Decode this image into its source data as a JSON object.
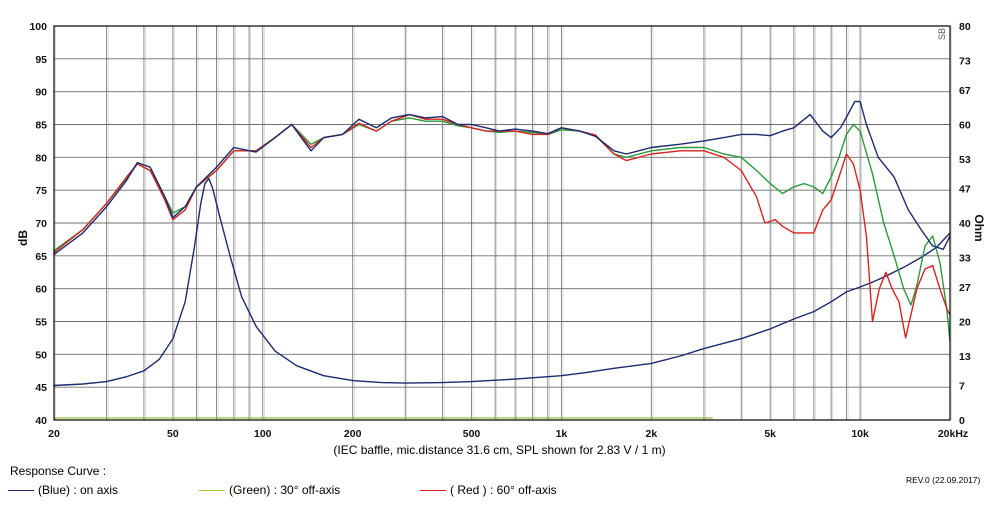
{
  "caption": "(IEC baffle, mic.distance 31.6 cm, SPL shown for 2.83 V / 1 m)",
  "legend": {
    "title": "Response Curve :",
    "items": [
      {
        "text": "(Blue)  : on axis",
        "color": "#1c2a6e"
      },
      {
        "text": "(Green) : 30° off-axis",
        "color": "#9acd32"
      },
      {
        "text": "( Red ) : 60° off-axis",
        "color": "#d8241f"
      }
    ]
  },
  "revision": "REV.0 (22.09.2017)",
  "brand": "SB",
  "chart_data": {
    "type": "line",
    "x_scale": "log",
    "xlim": [
      20,
      20000
    ],
    "ylim": [
      40,
      100
    ],
    "y2lim": [
      0,
      80
    ],
    "ylabel": "dB",
    "y2label": "Ohm",
    "grid": true,
    "x_ticks": [
      20,
      50,
      100,
      200,
      500,
      1000,
      2000,
      5000,
      10000,
      20000
    ],
    "x_tick_labels": [
      "20",
      "50",
      "100",
      "200",
      "500",
      "1k",
      "2k",
      "5k",
      "10k",
      "20kHz"
    ],
    "y_ticks": [
      40,
      45,
      50,
      55,
      60,
      65,
      70,
      75,
      80,
      85,
      90,
      95,
      100
    ],
    "y2_ticks": [
      0,
      7,
      13,
      20,
      27,
      33,
      40,
      47,
      53,
      60,
      67,
      73,
      80
    ],
    "series": [
      {
        "name": "on axis",
        "color": "#1c2a6e",
        "axis": "left",
        "points": [
          [
            20,
            65.2
          ],
          [
            25,
            68.5
          ],
          [
            30,
            72.5
          ],
          [
            35,
            76.5
          ],
          [
            38,
            79.2
          ],
          [
            42,
            78.5
          ],
          [
            47,
            74
          ],
          [
            50,
            70.8
          ],
          [
            55,
            72.5
          ],
          [
            60,
            75.5
          ],
          [
            70,
            78.5
          ],
          [
            80,
            81.5
          ],
          [
            95,
            80.8
          ],
          [
            110,
            83
          ],
          [
            125,
            85
          ],
          [
            145,
            81
          ],
          [
            160,
            83
          ],
          [
            185,
            83.5
          ],
          [
            210,
            85.8
          ],
          [
            240,
            84.5
          ],
          [
            270,
            86
          ],
          [
            310,
            86.5
          ],
          [
            350,
            86
          ],
          [
            400,
            86.2
          ],
          [
            450,
            85
          ],
          [
            500,
            85
          ],
          [
            560,
            84.5
          ],
          [
            620,
            84
          ],
          [
            700,
            84.3
          ],
          [
            800,
            84
          ],
          [
            900,
            83.6
          ],
          [
            1000,
            84.5
          ],
          [
            1150,
            84
          ],
          [
            1300,
            83.2
          ],
          [
            1500,
            81
          ],
          [
            1650,
            80.5
          ],
          [
            2000,
            81.5
          ],
          [
            2500,
            82
          ],
          [
            3000,
            82.5
          ],
          [
            3500,
            83
          ],
          [
            4000,
            83.5
          ],
          [
            4500,
            83.5
          ],
          [
            5000,
            83.3
          ],
          [
            5500,
            84
          ],
          [
            6000,
            84.5
          ],
          [
            6800,
            86.5
          ],
          [
            7500,
            84
          ],
          [
            8000,
            83
          ],
          [
            8600,
            84.5
          ],
          [
            9100,
            86.5
          ],
          [
            9600,
            88.5
          ],
          [
            10000,
            88.5
          ],
          [
            10500,
            85
          ],
          [
            11500,
            80
          ],
          [
            13000,
            77
          ],
          [
            14500,
            72
          ],
          [
            16000,
            69
          ],
          [
            17500,
            66.5
          ],
          [
            19000,
            66
          ],
          [
            20000,
            68
          ]
        ]
      },
      {
        "name": "30° off-axis",
        "color": "#2c9a3b",
        "axis": "left",
        "points": [
          [
            20,
            65.8
          ],
          [
            25,
            69
          ],
          [
            30,
            73
          ],
          [
            35,
            76.8
          ],
          [
            38,
            79
          ],
          [
            42,
            78
          ],
          [
            47,
            74
          ],
          [
            50,
            71.5
          ],
          [
            55,
            72.5
          ],
          [
            60,
            75.5
          ],
          [
            70,
            78
          ],
          [
            80,
            81
          ],
          [
            95,
            81
          ],
          [
            110,
            83
          ],
          [
            125,
            85
          ],
          [
            145,
            82
          ],
          [
            160,
            83
          ],
          [
            185,
            83.5
          ],
          [
            210,
            85
          ],
          [
            240,
            84
          ],
          [
            270,
            85.5
          ],
          [
            310,
            86
          ],
          [
            350,
            85.5
          ],
          [
            400,
            85.5
          ],
          [
            450,
            84.8
          ],
          [
            500,
            84.5
          ],
          [
            560,
            84
          ],
          [
            620,
            83.8
          ],
          [
            700,
            84
          ],
          [
            800,
            83.8
          ],
          [
            900,
            83.5
          ],
          [
            1000,
            84.2
          ],
          [
            1150,
            84
          ],
          [
            1300,
            83.3
          ],
          [
            1500,
            80.5
          ],
          [
            1650,
            80
          ],
          [
            2000,
            81
          ],
          [
            2500,
            81.5
          ],
          [
            3000,
            81.5
          ],
          [
            3500,
            80.5
          ],
          [
            4000,
            80
          ],
          [
            4500,
            78
          ],
          [
            5000,
            76
          ],
          [
            5500,
            74.5
          ],
          [
            6000,
            75.5
          ],
          [
            6500,
            76
          ],
          [
            7000,
            75.5
          ],
          [
            7500,
            74.5
          ],
          [
            8000,
            77
          ],
          [
            8500,
            80
          ],
          [
            9000,
            83.5
          ],
          [
            9500,
            85
          ],
          [
            10000,
            84
          ],
          [
            11000,
            77.5
          ],
          [
            12000,
            70
          ],
          [
            13000,
            65
          ],
          [
            14000,
            60
          ],
          [
            14800,
            57.5
          ],
          [
            15500,
            60.5
          ],
          [
            16500,
            66.5
          ],
          [
            17500,
            68
          ],
          [
            18500,
            64
          ],
          [
            19500,
            57
          ],
          [
            20000,
            52
          ]
        ]
      },
      {
        "name": "60° off-axis",
        "color": "#d8241f",
        "axis": "left",
        "points": [
          [
            20,
            65.5
          ],
          [
            25,
            69
          ],
          [
            30,
            73
          ],
          [
            35,
            77
          ],
          [
            38,
            79
          ],
          [
            42,
            78
          ],
          [
            47,
            73.5
          ],
          [
            50,
            70.5
          ],
          [
            55,
            72
          ],
          [
            60,
            75.5
          ],
          [
            70,
            78
          ],
          [
            80,
            81
          ],
          [
            95,
            81
          ],
          [
            110,
            83
          ],
          [
            125,
            85
          ],
          [
            145,
            81.5
          ],
          [
            160,
            83
          ],
          [
            185,
            83.5
          ],
          [
            210,
            85.2
          ],
          [
            240,
            84
          ],
          [
            270,
            85.5
          ],
          [
            310,
            86.5
          ],
          [
            350,
            85.8
          ],
          [
            400,
            85.8
          ],
          [
            450,
            85
          ],
          [
            500,
            84.5
          ],
          [
            560,
            84
          ],
          [
            620,
            84
          ],
          [
            700,
            84
          ],
          [
            800,
            83.5
          ],
          [
            900,
            83.5
          ],
          [
            1000,
            84.5
          ],
          [
            1150,
            84
          ],
          [
            1300,
            83.4
          ],
          [
            1500,
            80.5
          ],
          [
            1650,
            79.5
          ],
          [
            2000,
            80.5
          ],
          [
            2500,
            81
          ],
          [
            3000,
            81
          ],
          [
            3500,
            80
          ],
          [
            4000,
            78
          ],
          [
            4500,
            74
          ],
          [
            4800,
            70
          ],
          [
            5200,
            70.5
          ],
          [
            5500,
            69.5
          ],
          [
            6000,
            68.5
          ],
          [
            6500,
            68.5
          ],
          [
            7000,
            68.5
          ],
          [
            7500,
            72
          ],
          [
            8000,
            73.5
          ],
          [
            8500,
            77
          ],
          [
            9000,
            80.5
          ],
          [
            9500,
            79
          ],
          [
            10000,
            75
          ],
          [
            10500,
            68
          ],
          [
            11000,
            55
          ],
          [
            11600,
            60
          ],
          [
            12200,
            62.5
          ],
          [
            12800,
            60
          ],
          [
            13500,
            58
          ],
          [
            14200,
            52.5
          ],
          [
            14800,
            56
          ],
          [
            15500,
            60
          ],
          [
            16500,
            63
          ],
          [
            17500,
            63.5
          ],
          [
            18500,
            60
          ],
          [
            19500,
            57
          ],
          [
            20000,
            56
          ]
        ]
      },
      {
        "name": "impedance",
        "color": "#1c2a6e",
        "axis": "right",
        "points": [
          [
            20,
            7
          ],
          [
            25,
            7.3
          ],
          [
            30,
            7.8
          ],
          [
            35,
            8.8
          ],
          [
            40,
            10
          ],
          [
            45,
            12.3
          ],
          [
            50,
            16.5
          ],
          [
            55,
            24
          ],
          [
            59,
            35
          ],
          [
            62,
            44
          ],
          [
            64,
            48
          ],
          [
            66,
            49
          ],
          [
            68,
            47
          ],
          [
            72,
            41
          ],
          [
            78,
            33
          ],
          [
            85,
            25
          ],
          [
            95,
            19
          ],
          [
            110,
            14
          ],
          [
            130,
            11
          ],
          [
            160,
            9
          ],
          [
            200,
            8
          ],
          [
            250,
            7.6
          ],
          [
            300,
            7.5
          ],
          [
            400,
            7.6
          ],
          [
            500,
            7.8
          ],
          [
            700,
            8.3
          ],
          [
            1000,
            9
          ],
          [
            1200,
            9.6
          ],
          [
            1500,
            10.5
          ],
          [
            2000,
            11.5
          ],
          [
            2500,
            13
          ],
          [
            3000,
            14.5
          ],
          [
            4000,
            16.5
          ],
          [
            5000,
            18.5
          ],
          [
            6000,
            20.5
          ],
          [
            7000,
            22
          ],
          [
            8000,
            24
          ],
          [
            9000,
            26
          ],
          [
            10000,
            27
          ],
          [
            11000,
            28
          ],
          [
            12000,
            29
          ],
          [
            14000,
            31
          ],
          [
            16000,
            33
          ],
          [
            18000,
            35
          ],
          [
            20000,
            38
          ]
        ]
      },
      {
        "name": "green reference line",
        "color": "#8cc23c",
        "axis": "right",
        "points": [
          [
            20,
            0.4
          ],
          [
            3200,
            0.4
          ]
        ]
      }
    ]
  }
}
